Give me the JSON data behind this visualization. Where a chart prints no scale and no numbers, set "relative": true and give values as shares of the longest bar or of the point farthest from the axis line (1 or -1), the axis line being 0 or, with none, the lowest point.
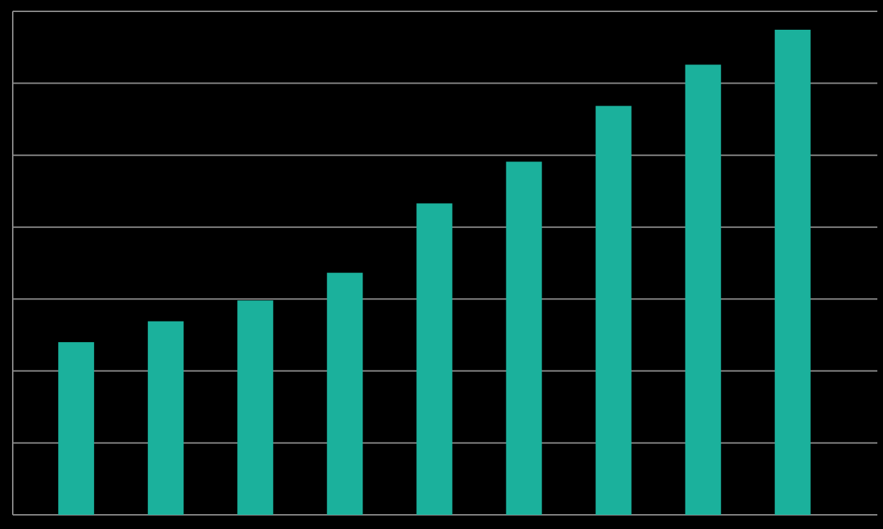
{
  "chart_data": {
    "type": "bar",
    "relative": true,
    "categories": [
      null,
      null,
      null,
      null,
      null,
      null,
      null,
      null,
      null
    ],
    "values": [
      0.356,
      0.399,
      0.442,
      0.499,
      0.642,
      0.728,
      0.843,
      0.928,
      1
    ],
    "color": "#1bb19c",
    "grid": true
  }
}
